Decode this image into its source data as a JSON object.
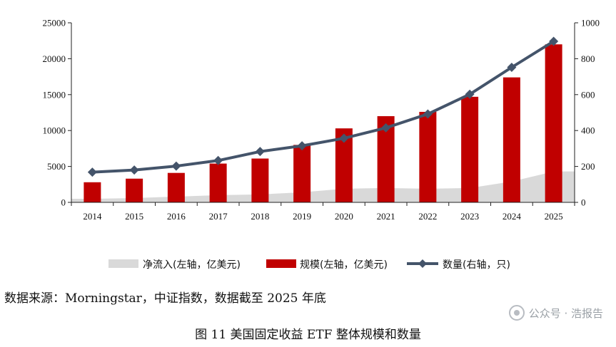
{
  "chart_data": {
    "type": "bar+line+area",
    "categories": [
      "2014",
      "2015",
      "2016",
      "2017",
      "2018",
      "2019",
      "2020",
      "2021",
      "2022",
      "2023",
      "2024",
      "2025"
    ],
    "left_axis": {
      "ylim": [
        0,
        25000
      ],
      "ticks": [
        0,
        5000,
        10000,
        15000,
        20000,
        25000
      ]
    },
    "right_axis": {
      "ylim": [
        0,
        1000
      ],
      "ticks": [
        0,
        200,
        400,
        600,
        800,
        1000
      ]
    },
    "series": [
      {
        "name": "净流入(左轴，亿美元)",
        "type": "area",
        "axis": "left",
        "color": "#d9d9d9",
        "values": [
          500,
          600,
          800,
          1000,
          1100,
          1400,
          1900,
          2000,
          1900,
          2000,
          2900,
          4300
        ]
      },
      {
        "name": "规模(左轴，亿美元)",
        "type": "bar",
        "axis": "left",
        "color": "#c00000",
        "values": [
          2800,
          3300,
          4100,
          5400,
          6100,
          8000,
          10300,
          12000,
          12600,
          14700,
          17400,
          22000
        ]
      },
      {
        "name": "数量(右轴，只)",
        "type": "line",
        "axis": "right",
        "color": "#44546a",
        "values": [
          168,
          180,
          202,
          233,
          283,
          315,
          357,
          415,
          492,
          602,
          752,
          897
        ]
      }
    ],
    "legend_position": "bottom"
  },
  "source_text": "数据来源：Morningstar，中证指数，数据截至 2025 年底",
  "caption_text": "图 11 美国固定收益 ETF 整体规模和数量",
  "watermark_text": "公众号 · 浩报告"
}
